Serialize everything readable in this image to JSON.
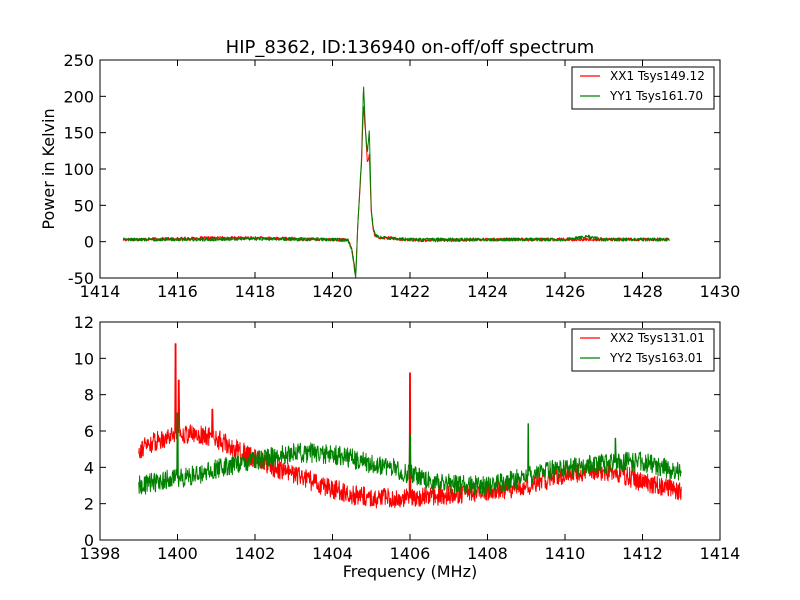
{
  "figure_title": "HIP_8362, ID:136940 on-off/off spectrum",
  "chart_data": [
    {
      "type": "line",
      "title": "HIP_8362, ID:136940 on-off/off spectrum",
      "xlabel": "",
      "ylabel": "Power in Kelvin",
      "xlim": [
        1414,
        1430
      ],
      "ylim": [
        -50,
        250
      ],
      "xticks": [
        1414,
        1416,
        1418,
        1420,
        1422,
        1424,
        1426,
        1428,
        1430
      ],
      "yticks": [
        -50,
        0,
        50,
        100,
        150,
        200,
        250
      ],
      "grid": false,
      "legend_position": "top-right",
      "series": [
        {
          "name": "XX1 Tsys149.12",
          "color": "#ff0000",
          "x": [
            1414.6,
            1416.0,
            1417.0,
            1418.0,
            1419.0,
            1420.0,
            1420.4,
            1420.5,
            1420.6,
            1420.65,
            1420.75,
            1420.8,
            1420.85,
            1420.9,
            1420.95,
            1421.0,
            1421.05,
            1421.1,
            1421.2,
            1421.5,
            1422.0,
            1423.0,
            1424.0,
            1425.0,
            1426.0,
            1427.0,
            1428.0,
            1428.7
          ],
          "y": [
            3,
            4,
            5,
            5,
            4,
            3,
            2,
            -10,
            -45,
            20,
            110,
            190,
            150,
            110,
            120,
            40,
            15,
            8,
            6,
            5,
            2,
            2,
            3,
            3,
            3,
            3,
            3,
            3
          ]
        },
        {
          "name": "YY1 Tsys161.70",
          "color": "#008000",
          "x": [
            1414.6,
            1416.0,
            1417.0,
            1418.0,
            1419.0,
            1420.0,
            1420.4,
            1420.5,
            1420.6,
            1420.65,
            1420.75,
            1420.8,
            1420.85,
            1420.9,
            1420.95,
            1421.0,
            1421.05,
            1421.1,
            1421.2,
            1421.5,
            1422.0,
            1423.0,
            1424.0,
            1425.0,
            1426.0,
            1426.6,
            1427.0,
            1428.0,
            1428.7
          ],
          "y": [
            3,
            3,
            3,
            4,
            3,
            3,
            2,
            -12,
            -50,
            20,
            115,
            215,
            155,
            120,
            155,
            45,
            20,
            10,
            6,
            5,
            3,
            3,
            3,
            3,
            3,
            7,
            3,
            3,
            3
          ]
        }
      ]
    },
    {
      "type": "line",
      "title": "",
      "xlabel": "Frequency (MHz)",
      "ylabel": "",
      "xlim": [
        1398,
        1414
      ],
      "ylim": [
        0,
        12
      ],
      "xticks": [
        1398,
        1400,
        1402,
        1404,
        1406,
        1408,
        1410,
        1412,
        1414
      ],
      "yticks": [
        0,
        2,
        4,
        6,
        8,
        10,
        12
      ],
      "grid": false,
      "legend_position": "top-right",
      "series": [
        {
          "name": "XX2 Tsys131.01",
          "color": "#ff0000",
          "x": [
            1399.0,
            1399.5,
            1400.0,
            1400.5,
            1401.0,
            1401.5,
            1402.0,
            1402.5,
            1403.0,
            1403.5,
            1404.0,
            1404.5,
            1405.0,
            1405.5,
            1406.0,
            1406.5,
            1407.0,
            1407.5,
            1408.0,
            1408.5,
            1409.0,
            1409.5,
            1410.0,
            1410.5,
            1411.0,
            1411.5,
            1412.0,
            1412.5,
            1413.0
          ],
          "y": [
            5.0,
            5.5,
            5.9,
            5.8,
            5.6,
            5.0,
            4.5,
            4.0,
            3.6,
            3.2,
            2.8,
            2.5,
            2.3,
            2.3,
            2.3,
            2.4,
            2.5,
            2.6,
            2.7,
            2.8,
            3.0,
            3.3,
            3.6,
            3.8,
            3.8,
            3.6,
            3.2,
            2.9,
            2.7
          ],
          "spikes": [
            {
              "x": 1399.95,
              "y": 10.8
            },
            {
              "x": 1400.03,
              "y": 8.8
            },
            {
              "x": 1400.9,
              "y": 7.2
            },
            {
              "x": 1406.0,
              "y": 9.2
            }
          ]
        },
        {
          "name": "YY2 Tsys163.01",
          "color": "#008000",
          "x": [
            1399.0,
            1399.5,
            1400.0,
            1400.5,
            1401.0,
            1401.5,
            1402.0,
            1402.5,
            1403.0,
            1403.5,
            1404.0,
            1404.5,
            1405.0,
            1405.5,
            1406.0,
            1406.5,
            1407.0,
            1407.5,
            1408.0,
            1408.5,
            1409.0,
            1409.5,
            1410.0,
            1410.5,
            1411.0,
            1411.5,
            1412.0,
            1412.5,
            1413.0
          ],
          "y": [
            3.0,
            3.2,
            3.4,
            3.6,
            3.9,
            4.2,
            4.4,
            4.6,
            4.8,
            4.8,
            4.7,
            4.5,
            4.2,
            4.0,
            3.6,
            3.3,
            3.1,
            3.0,
            3.0,
            3.2,
            3.5,
            3.8,
            4.0,
            4.1,
            4.2,
            4.3,
            4.3,
            4.0,
            3.7
          ],
          "spikes": [
            {
              "x": 1400.0,
              "y": 7.0
            },
            {
              "x": 1406.0,
              "y": 5.8
            },
            {
              "x": 1409.05,
              "y": 6.4
            },
            {
              "x": 1411.3,
              "y": 5.6
            }
          ]
        }
      ]
    }
  ]
}
